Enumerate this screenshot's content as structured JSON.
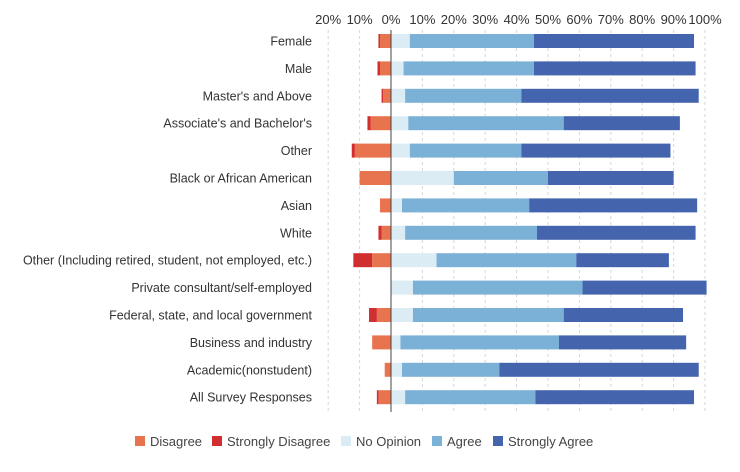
{
  "chart_data": {
    "type": "bar",
    "orientation": "horizontal",
    "stacked": true,
    "diverging": true,
    "title": "",
    "xlabel": "",
    "ylabel": "",
    "xlim": [
      -20,
      100
    ],
    "x_ticks": [
      "20%",
      "10%",
      "0%",
      "10%",
      "20%",
      "30%",
      "40%",
      "50%",
      "60%",
      "70%",
      "80%",
      "90%",
      "100%"
    ],
    "grid": true,
    "legend_position": "bottom",
    "categories": [
      "Female",
      "Male",
      "Master's and Above",
      "Associate's and Bachelor's",
      "Other",
      "Black or African American",
      "Asian",
      "White",
      "Other (Including retired, student, not employed, etc.)",
      "Private consultant/self-employed",
      "Federal, state, and local government",
      "Business and industry",
      "Academic(nonstudent)",
      "All Survey Responses"
    ],
    "series": [
      {
        "name": "Disagree",
        "color": "#e8744f",
        "side": "negative",
        "values": [
          3.5,
          3.5,
          2.5,
          6.5,
          11.5,
          10,
          3.5,
          3,
          6,
          0,
          4.5,
          6,
          2,
          4
        ]
      },
      {
        "name": "Strongly Disagree",
        "color": "#d12f2f",
        "side": "negative",
        "values": [
          0.5,
          0.8,
          0.5,
          1,
          1,
          0,
          0,
          1,
          6,
          0,
          2.5,
          0,
          0,
          0.5
        ]
      },
      {
        "name": "No Opinion",
        "color": "#dcecf5",
        "side": "positive",
        "values": [
          6,
          4,
          4.5,
          5.5,
          6,
          20,
          3.5,
          4.5,
          14.5,
          7,
          7,
          3,
          3.5,
          4.5
        ]
      },
      {
        "name": "Agree",
        "color": "#7bb1d6",
        "side": "positive",
        "values": [
          39.5,
          41.5,
          37,
          49.5,
          35.5,
          30,
          40.5,
          42,
          44.5,
          54,
          48,
          50.5,
          31,
          41.5
        ]
      },
      {
        "name": "Strongly Agree",
        "color": "#4465ae",
        "side": "positive",
        "values": [
          51,
          51.5,
          56.5,
          37,
          47.5,
          40,
          53.5,
          50.5,
          29.5,
          39.5,
          38,
          40.5,
          63.5,
          50.5
        ]
      }
    ]
  }
}
